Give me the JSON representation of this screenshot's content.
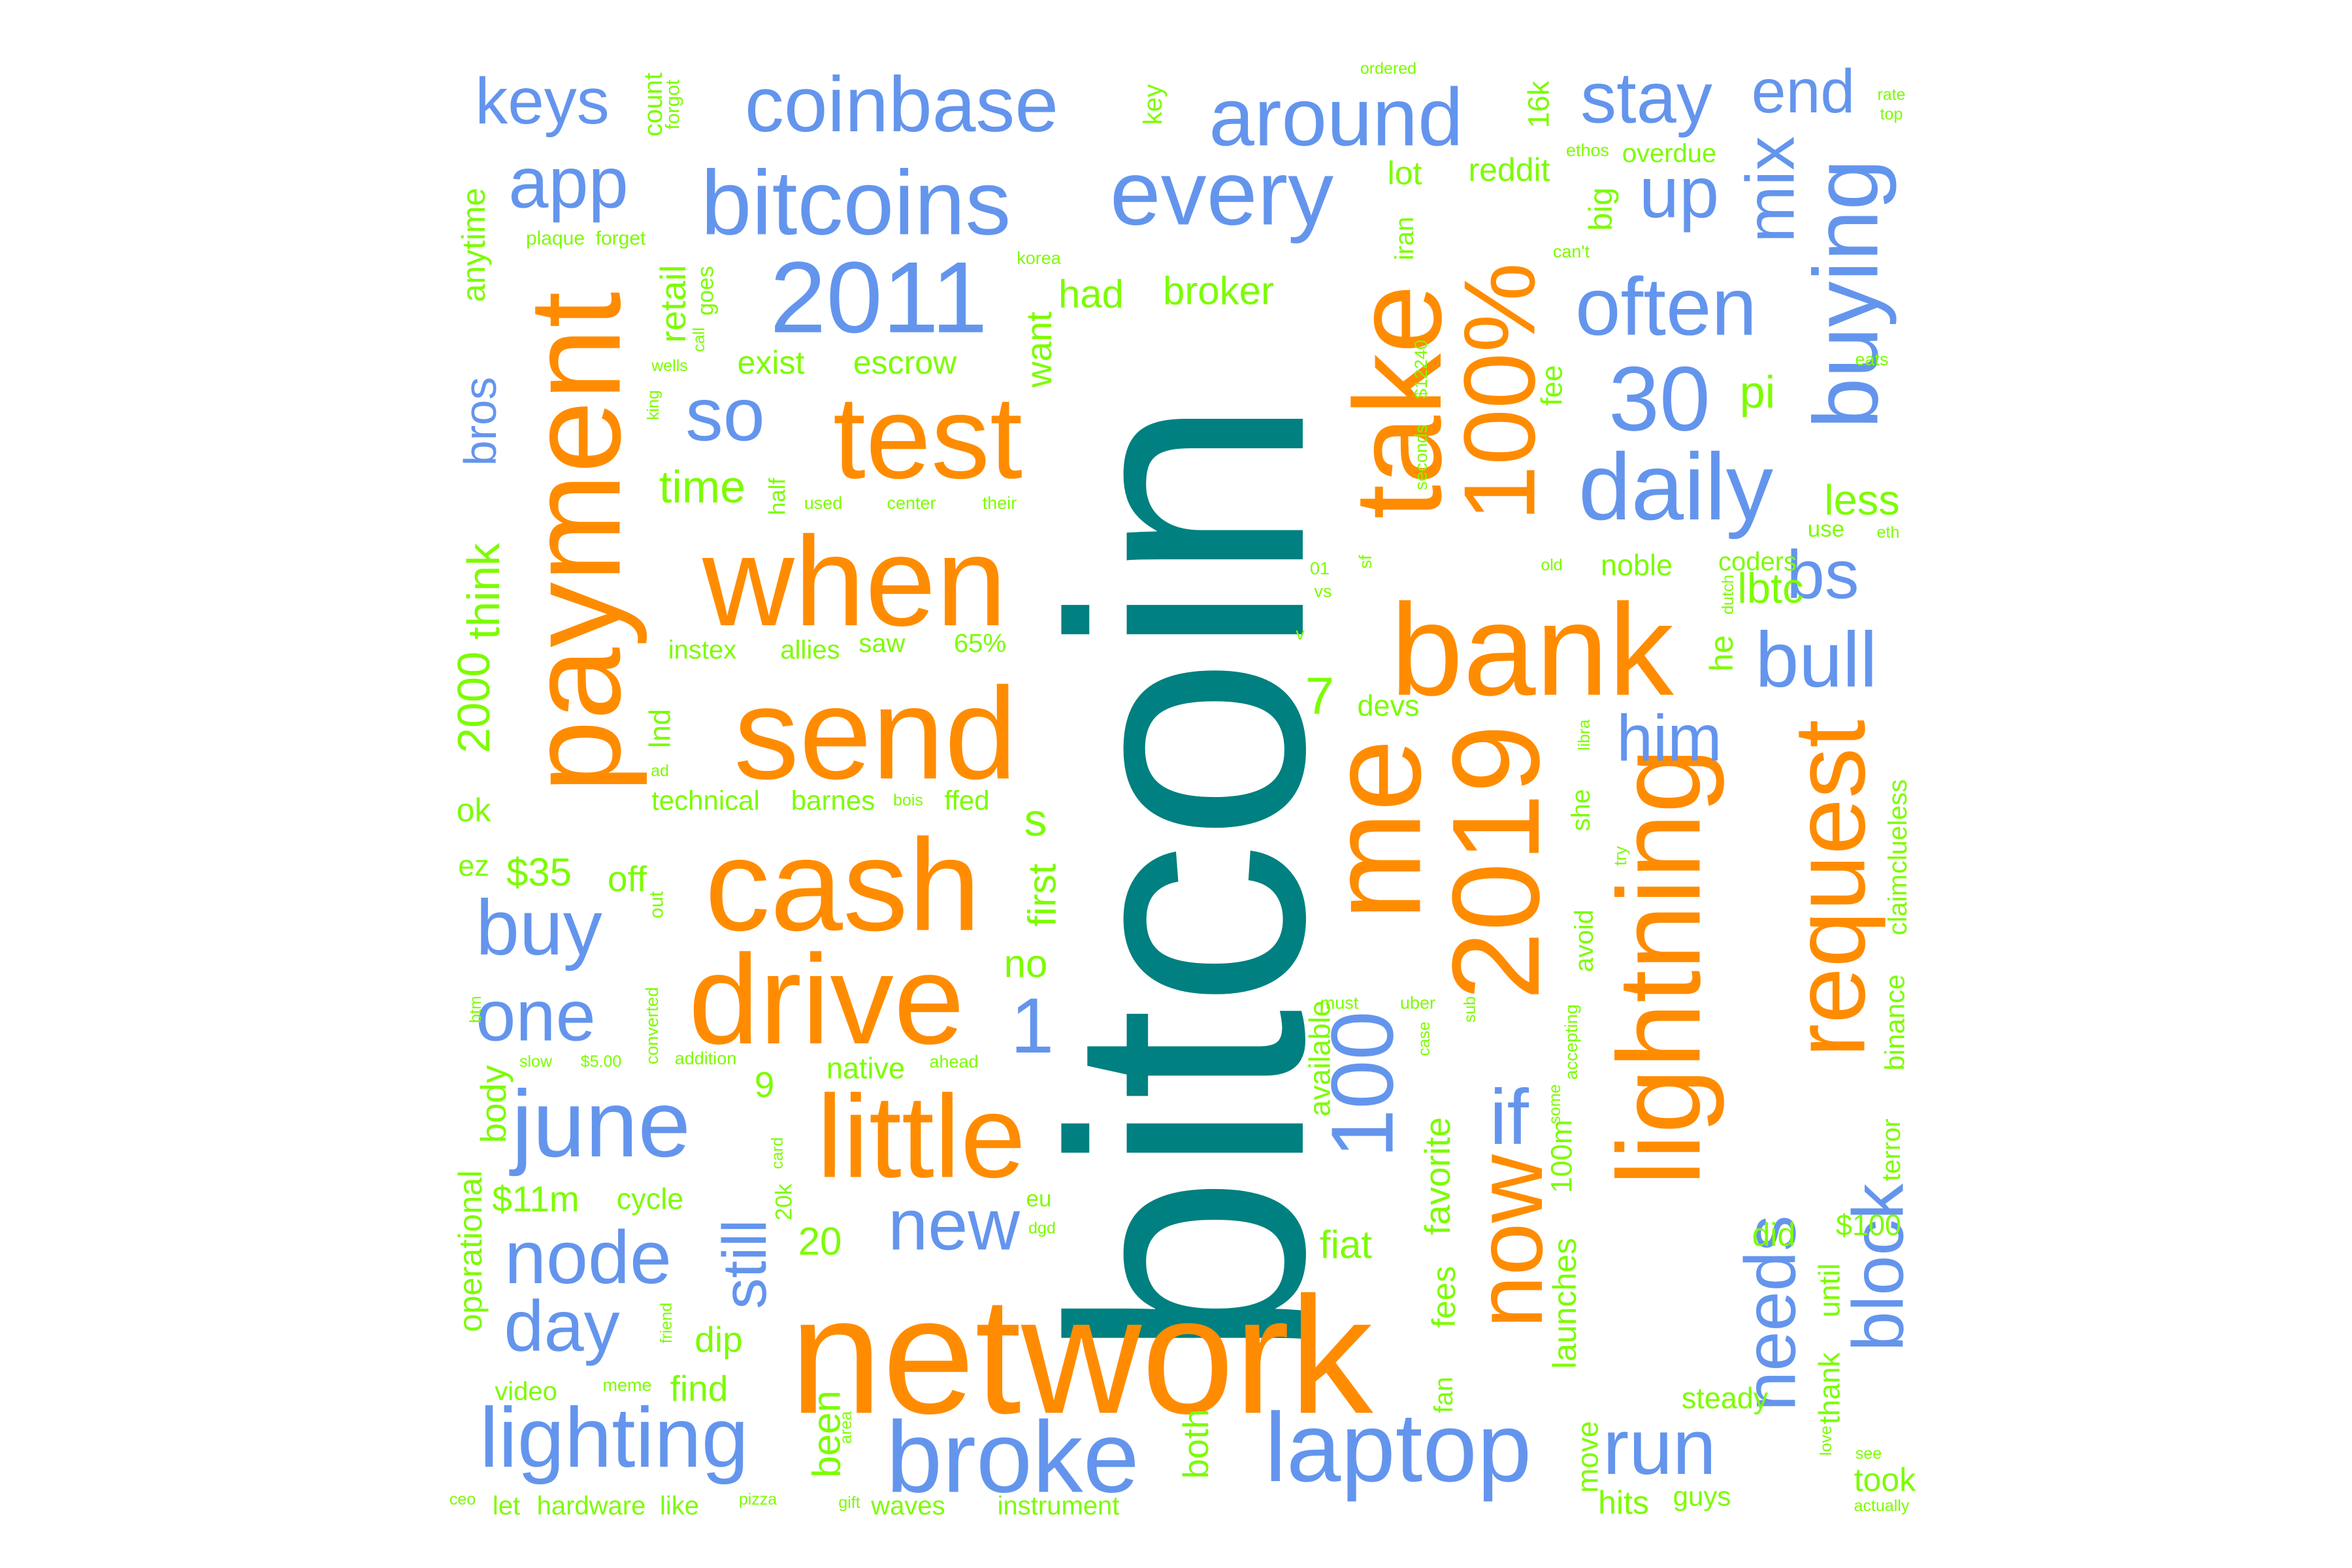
{
  "palette": {
    "teal": "#008080",
    "orange": "#FF8C00",
    "blue": "#6495ED",
    "green": "#7CFC00"
  },
  "words": [
    {
      "text": "bitcoin",
      "color": "teal"
    },
    {
      "text": "network",
      "color": "orange"
    },
    {
      "text": "send",
      "color": "orange"
    },
    {
      "text": "cash",
      "color": "orange"
    },
    {
      "text": "when",
      "color": "orange"
    },
    {
      "text": "drive",
      "color": "orange"
    },
    {
      "text": "little",
      "color": "orange"
    },
    {
      "text": "test",
      "color": "orange"
    },
    {
      "text": "payment",
      "color": "orange"
    },
    {
      "text": "bank",
      "color": "orange"
    },
    {
      "text": "me",
      "color": "orange"
    },
    {
      "text": "take",
      "color": "orange"
    },
    {
      "text": "2019",
      "color": "orange"
    },
    {
      "text": "100%",
      "color": "orange"
    },
    {
      "text": "now",
      "color": "orange"
    },
    {
      "text": "lightning",
      "color": "orange"
    },
    {
      "text": "request",
      "color": "orange"
    },
    {
      "text": "bitcoins",
      "color": "blue"
    },
    {
      "text": "coinbase",
      "color": "blue"
    },
    {
      "text": "around",
      "color": "blue"
    },
    {
      "text": "every",
      "color": "blue"
    },
    {
      "text": "2011",
      "color": "blue"
    },
    {
      "text": "stay",
      "color": "blue"
    },
    {
      "text": "end",
      "color": "blue"
    },
    {
      "text": "keys",
      "color": "blue"
    },
    {
      "text": "app",
      "color": "blue"
    },
    {
      "text": "so",
      "color": "blue"
    },
    {
      "text": "often",
      "color": "blue"
    },
    {
      "text": "up",
      "color": "blue"
    },
    {
      "text": "30",
      "color": "blue"
    },
    {
      "text": "daily",
      "color": "blue"
    },
    {
      "text": "bull",
      "color": "blue"
    },
    {
      "text": "him",
      "color": "blue"
    },
    {
      "text": "bs",
      "color": "blue"
    },
    {
      "text": "mix",
      "color": "blue"
    },
    {
      "text": "buying",
      "color": "blue"
    },
    {
      "text": "june",
      "color": "blue"
    },
    {
      "text": "buy",
      "color": "blue"
    },
    {
      "text": "one",
      "color": "blue"
    },
    {
      "text": "node",
      "color": "blue"
    },
    {
      "text": "day",
      "color": "blue"
    },
    {
      "text": "new",
      "color": "blue"
    },
    {
      "text": "lighting",
      "color": "blue"
    },
    {
      "text": "broke",
      "color": "blue"
    },
    {
      "text": "laptop",
      "color": "blue"
    },
    {
      "text": "run",
      "color": "blue"
    },
    {
      "text": "still",
      "color": "blue"
    },
    {
      "text": "1",
      "color": "blue"
    },
    {
      "text": "100",
      "color": "blue"
    },
    {
      "text": "if",
      "color": "blue"
    },
    {
      "text": "needs",
      "color": "blue"
    },
    {
      "text": "block",
      "color": "blue"
    },
    {
      "text": "bros",
      "color": "blue"
    },
    {
      "text": "retail",
      "color": "green"
    },
    {
      "text": "had",
      "color": "green"
    },
    {
      "text": "broker",
      "color": "green"
    },
    {
      "text": "want",
      "color": "green"
    },
    {
      "text": "exist",
      "color": "green"
    },
    {
      "text": "escrow",
      "color": "green"
    },
    {
      "text": "time",
      "color": "green"
    },
    {
      "text": "pi",
      "color": "green"
    },
    {
      "text": "less",
      "color": "green"
    },
    {
      "text": "lbtc",
      "color": "green"
    },
    {
      "text": "coders",
      "color": "green"
    },
    {
      "text": "noble",
      "color": "green"
    },
    {
      "text": "instex",
      "color": "green"
    },
    {
      "text": "allies",
      "color": "green"
    },
    {
      "text": "saw",
      "color": "green"
    },
    {
      "text": "65%",
      "color": "green"
    },
    {
      "text": "7",
      "color": "green"
    },
    {
      "text": "devs",
      "color": "green"
    },
    {
      "text": "lnd",
      "color": "green"
    },
    {
      "text": "technical",
      "color": "green"
    },
    {
      "text": "barnes",
      "color": "green"
    },
    {
      "text": "ffed",
      "color": "green"
    },
    {
      "text": "s",
      "color": "green"
    },
    {
      "text": "first",
      "color": "green"
    },
    {
      "text": "no",
      "color": "green"
    },
    {
      "text": "$35",
      "color": "green"
    },
    {
      "text": "off",
      "color": "green"
    },
    {
      "text": "ez",
      "color": "green"
    },
    {
      "text": "ok",
      "color": "green"
    },
    {
      "text": "2000",
      "color": "green"
    },
    {
      "text": "think",
      "color": "green"
    },
    {
      "text": "anytime",
      "color": "green"
    },
    {
      "text": "body",
      "color": "green"
    },
    {
      "text": "native",
      "color": "green"
    },
    {
      "text": "9",
      "color": "green"
    },
    {
      "text": "$11m",
      "color": "green"
    },
    {
      "text": "cycle",
      "color": "green"
    },
    {
      "text": "20",
      "color": "green"
    },
    {
      "text": "operational",
      "color": "green"
    },
    {
      "text": "dip",
      "color": "green"
    },
    {
      "text": "find",
      "color": "green"
    },
    {
      "text": "video",
      "color": "green"
    },
    {
      "text": "been",
      "color": "green"
    },
    {
      "text": "waves",
      "color": "green"
    },
    {
      "text": "instrument",
      "color": "green"
    },
    {
      "text": "both",
      "color": "green"
    },
    {
      "text": "let",
      "color": "green"
    },
    {
      "text": "hardware",
      "color": "green"
    },
    {
      "text": "like",
      "color": "green"
    },
    {
      "text": "fiat",
      "color": "green"
    },
    {
      "text": "favorite",
      "color": "green"
    },
    {
      "text": "fees",
      "color": "green"
    },
    {
      "text": "fan",
      "color": "green"
    },
    {
      "text": "available",
      "color": "green"
    },
    {
      "text": "launches",
      "color": "green"
    },
    {
      "text": "100m",
      "color": "green"
    },
    {
      "text": "move",
      "color": "green"
    },
    {
      "text": "hits",
      "color": "green"
    },
    {
      "text": "guys",
      "color": "green"
    },
    {
      "text": "steady",
      "color": "green"
    },
    {
      "text": "did",
      "color": "green"
    },
    {
      "text": "until",
      "color": "green"
    },
    {
      "text": "thank",
      "color": "green"
    },
    {
      "text": "took",
      "color": "green"
    },
    {
      "text": "$100",
      "color": "green"
    },
    {
      "text": "terror",
      "color": "green"
    },
    {
      "text": "binance",
      "color": "green"
    },
    {
      "text": "claim",
      "color": "green"
    },
    {
      "text": "clueless",
      "color": "green"
    },
    {
      "text": "he",
      "color": "green"
    },
    {
      "text": "she",
      "color": "green"
    },
    {
      "text": "avoid",
      "color": "green"
    },
    {
      "text": "fee",
      "color": "green"
    },
    {
      "text": "big",
      "color": "green"
    },
    {
      "text": "reddit",
      "color": "green"
    },
    {
      "text": "overdue",
      "color": "green"
    },
    {
      "text": "lot",
      "color": "green"
    },
    {
      "text": "16k",
      "color": "green"
    },
    {
      "text": "key",
      "color": "green"
    },
    {
      "text": "count",
      "color": "green"
    },
    {
      "text": "forgot",
      "color": "green"
    },
    {
      "text": "goes",
      "color": "green"
    },
    {
      "text": "call",
      "color": "green"
    },
    {
      "text": "plaque",
      "color": "green"
    },
    {
      "text": "forget",
      "color": "green"
    },
    {
      "text": "wells",
      "color": "green"
    },
    {
      "text": "king",
      "color": "green"
    },
    {
      "text": "half",
      "color": "green"
    },
    {
      "text": "used",
      "color": "green"
    },
    {
      "text": "center",
      "color": "green"
    },
    {
      "text": "their",
      "color": "green"
    },
    {
      "text": "korea",
      "color": "green"
    },
    {
      "text": "iran",
      "color": "green"
    },
    {
      "text": "$12240",
      "color": "green"
    },
    {
      "text": "seconds",
      "color": "green"
    },
    {
      "text": "ordered",
      "color": "green"
    },
    {
      "text": "ethos",
      "color": "green"
    },
    {
      "text": "can't",
      "color": "green"
    },
    {
      "text": "eats",
      "color": "green"
    },
    {
      "text": "rate",
      "color": "green"
    },
    {
      "text": "top",
      "color": "green"
    },
    {
      "text": "use",
      "color": "green"
    },
    {
      "text": "eth",
      "color": "green"
    },
    {
      "text": "old",
      "color": "green"
    },
    {
      "text": "01",
      "color": "green"
    },
    {
      "text": "vs",
      "color": "green"
    },
    {
      "text": "sf",
      "color": "green"
    },
    {
      "text": "v",
      "color": "green"
    },
    {
      "text": "dutch",
      "color": "green"
    },
    {
      "text": "libra",
      "color": "green"
    },
    {
      "text": "try",
      "color": "green"
    },
    {
      "text": "ad",
      "color": "green"
    },
    {
      "text": "bois",
      "color": "green"
    },
    {
      "text": "out",
      "color": "green"
    },
    {
      "text": "btm",
      "color": "green"
    },
    {
      "text": "converted",
      "color": "green"
    },
    {
      "text": "addition",
      "color": "green"
    },
    {
      "text": "ahead",
      "color": "green"
    },
    {
      "text": "slow",
      "color": "green"
    },
    {
      "text": "$5.00",
      "color": "green"
    },
    {
      "text": "card",
      "color": "green"
    },
    {
      "text": "20k",
      "color": "green"
    },
    {
      "text": "eu",
      "color": "green"
    },
    {
      "text": "dgd",
      "color": "green"
    },
    {
      "text": "must",
      "color": "green"
    },
    {
      "text": "uber",
      "color": "green"
    },
    {
      "text": "case",
      "color": "green"
    },
    {
      "text": "sub",
      "color": "green"
    },
    {
      "text": "accepting",
      "color": "green"
    },
    {
      "text": "some",
      "color": "green"
    },
    {
      "text": "friend",
      "color": "green"
    },
    {
      "text": "meme",
      "color": "green"
    },
    {
      "text": "area",
      "color": "green"
    },
    {
      "text": "pizza",
      "color": "green"
    },
    {
      "text": "gift",
      "color": "green"
    },
    {
      "text": "ceo",
      "color": "green"
    },
    {
      "text": "love",
      "color": "green"
    },
    {
      "text": "see",
      "color": "green"
    },
    {
      "text": "actually",
      "color": "green"
    }
  ]
}
